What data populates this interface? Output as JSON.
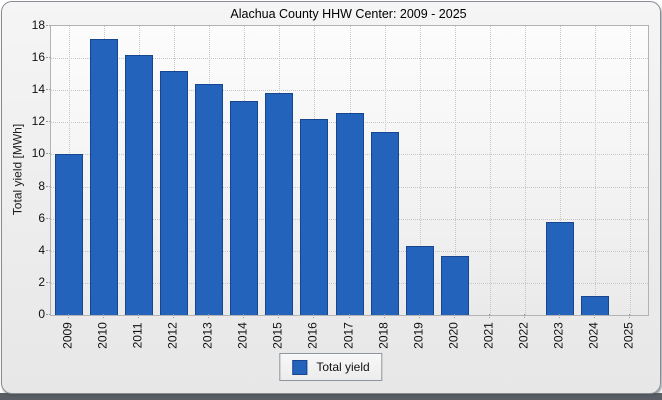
{
  "chart_data": {
    "type": "bar",
    "title": "Alachua County HHW Center: 2009 - 2025",
    "xlabel": "",
    "ylabel": "Total yield [MWh]",
    "categories": [
      "2009",
      "2010",
      "2011",
      "2012",
      "2013",
      "2014",
      "2015",
      "2016",
      "2017",
      "2018",
      "2019",
      "2020",
      "2021",
      "2022",
      "2023",
      "2024",
      "2025"
    ],
    "values": [
      10.0,
      17.2,
      16.2,
      15.2,
      14.4,
      13.3,
      13.8,
      12.2,
      12.6,
      11.4,
      4.3,
      3.7,
      0,
      0,
      5.8,
      1.2,
      0
    ],
    "ylim": [
      0,
      18
    ],
    "ytick_step": 2,
    "grid": true,
    "legend": {
      "position": "bottom",
      "entries": [
        {
          "label": "Total yield",
          "color": "#2463BC"
        }
      ]
    }
  },
  "colors": {
    "bar_fill": "#2463BC",
    "bar_border": "#17458F",
    "gridline": "#C6C6C6",
    "plot_border": "#B3B3B3",
    "window_border": "#878C93",
    "window_bg": "#EFEFEF",
    "shadow_strip": "#5A5F66"
  }
}
